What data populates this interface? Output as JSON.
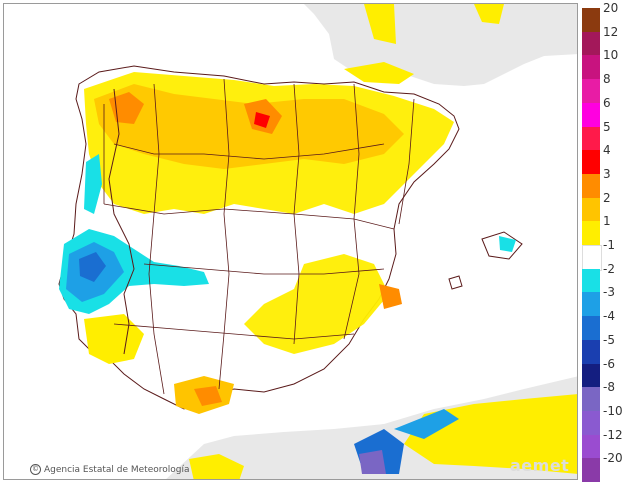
{
  "credit": {
    "symbol": "©",
    "text": "Agencia Estatal de Meteorología"
  },
  "logo": {
    "text": "aemet"
  },
  "legend": {
    "swatches": [
      {
        "label": "20",
        "color": "#8b3a0f"
      },
      {
        "label": "12",
        "color": "#a3185a"
      },
      {
        "label": "10",
        "color": "#c8137f"
      },
      {
        "label": "8",
        "color": "#e81ca5"
      },
      {
        "label": "6",
        "color": "#ff00e0"
      },
      {
        "label": "5",
        "color": "#ff1a4a"
      },
      {
        "label": "4",
        "color": "#ff0000"
      },
      {
        "label": "3",
        "color": "#ff8c00"
      },
      {
        "label": "2",
        "color": "#ffc400"
      },
      {
        "label": "1",
        "color": "#ffee00"
      },
      {
        "label": "-1",
        "color": "#ffffff"
      },
      {
        "label": "-2",
        "color": "#19e0e6"
      },
      {
        "label": "-3",
        "color": "#1ea0e6"
      },
      {
        "label": "-4",
        "color": "#1a6ed1"
      },
      {
        "label": "-5",
        "color": "#1a3fb0"
      },
      {
        "label": "-6",
        "color": "#141e80"
      },
      {
        "label": "-8",
        "color": "#7a66c4"
      },
      {
        "label": "-10",
        "color": "#8a5ad0"
      },
      {
        "label": "-12",
        "color": "#9a4cd0"
      },
      {
        "label": "-20",
        "color": "#8a3aa8"
      }
    ]
  }
}
